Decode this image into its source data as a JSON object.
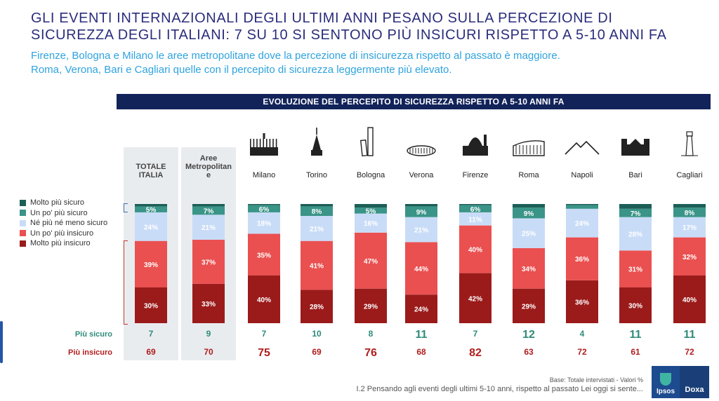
{
  "header": {
    "title_line1": "GLI EVENTI INTERNAZIONALI DEGLI ULTIMI ANNI PESANO SULLA PERCEZIONE DI",
    "title_line2": "SICUREZZA DEGLI ITALIANI: 7 SU 10 SI SENTONO PIÙ INSICURI RISPETTO A 5-10 ANNI FA",
    "subtitle_line1": "Firenze, Bologna e Milano le aree metropolitane dove la percezione di insicurezza rispetto al passato è maggiore.",
    "subtitle_line2": "Roma, Verona, Bari e Cagliari quelle con il percepito di sicurezza leggermente più elevato."
  },
  "chart_data": {
    "type": "bar",
    "stacked": true,
    "title": "EVOLUZIONE DEL PERCEPITO DI SICUREZZA RISPETTO A 5-10 ANNI FA",
    "categories": [
      "TOTALE ITALIA",
      "Aree Metropolitane",
      "Milano",
      "Torino",
      "Bologna",
      "Verona",
      "Firenze",
      "Roma",
      "Napoli",
      "Bari",
      "Cagliari"
    ],
    "category_labels": [
      "TOTALE\nITALIA",
      "Aree\nMetropolitan\ne",
      "Milano",
      "Torino",
      "Bologna",
      "Verona",
      "Firenze",
      "Roma",
      "Napoli",
      "Bari",
      "Cagliari"
    ],
    "series": [
      {
        "name": "Molto più insicuro",
        "color": "#9b1b1b",
        "values": [
          30,
          33,
          40,
          28,
          29,
          24,
          42,
          29,
          36,
          30,
          40
        ]
      },
      {
        "name": "Un po' più insicuro",
        "color": "#ea5050",
        "values": [
          39,
          37,
          35,
          41,
          47,
          44,
          40,
          34,
          36,
          31,
          32
        ]
      },
      {
        "name": "Né più né meno sicuro",
        "color": "#c9dcf7",
        "values": [
          24,
          21,
          18,
          21,
          16,
          21,
          11,
          25,
          24,
          28,
          17
        ]
      },
      {
        "name": "Un po' più sicuro",
        "color": "#3a9488",
        "values": [
          5,
          7,
          6,
          8,
          5,
          9,
          6,
          9,
          3,
          7,
          8
        ]
      },
      {
        "name": "Molto più sicuro",
        "color": "#1d5f57",
        "values": [
          2,
          2,
          1,
          2,
          3,
          2,
          1,
          3,
          1,
          4,
          3
        ]
      }
    ],
    "labeled_segments": {
      "Molto più insicuro": [
        "30%",
        "33%",
        "40%",
        "28%",
        "29%",
        "24%",
        "42%",
        "29%",
        "36%",
        "30%",
        "40%"
      ],
      "Un po' più insicuro": [
        "39%",
        "37%",
        "35%",
        "41%",
        "47%",
        "44%",
        "40%",
        "34%",
        "36%",
        "31%",
        "32%"
      ],
      "Né più né meno sicuro": [
        "24%",
        "21%",
        "18%",
        "21%",
        "16%",
        "21%",
        "11%",
        "25%",
        "24%",
        "28%",
        "17%"
      ],
      "Un po' più sicuro": [
        "5%",
        "7%",
        "6%",
        "8%",
        "5%",
        "9%",
        "6%",
        "9%",
        "",
        "7%",
        "8%"
      ]
    },
    "legend": {
      "placement": "left",
      "entries": [
        "Molto più sicuro",
        "Un po' più sicuro",
        "Né più né meno sicuro",
        "Un po' più insicuro",
        "Molto più insicuro"
      ],
      "colors": [
        "#1d5f57",
        "#3a9488",
        "#c9dcf7",
        "#ea5050",
        "#9b1b1b"
      ]
    },
    "ylim": [
      0,
      100
    ],
    "summary_rows": [
      {
        "label": "Più sicuro",
        "color": "#2e8b7a",
        "values": [
          "7",
          "9",
          "7",
          "10",
          "8",
          "11",
          "7",
          "12",
          "4",
          "11",
          "11"
        ],
        "large": [
          false,
          false,
          false,
          false,
          false,
          true,
          false,
          true,
          false,
          true,
          true
        ]
      },
      {
        "label": "Più insicuro",
        "color": "#b01e1e",
        "values": [
          "69",
          "70",
          "75",
          "69",
          "76",
          "68",
          "82",
          "63",
          "72",
          "61",
          "72"
        ],
        "large": [
          false,
          false,
          true,
          false,
          true,
          false,
          true,
          false,
          false,
          false,
          false
        ]
      }
    ],
    "city_icons": [
      "milan-cathedral-icon",
      "mole-antonelliana-icon",
      "bologna-towers-icon",
      "verona-arena-icon",
      "florence-duomo-icon",
      "colosseum-icon",
      "vesuvius-icon",
      "bari-basilica-icon",
      "cagliari-lighthouse-icon"
    ]
  },
  "footer": {
    "base": "Base: Totale intervistati - Valori %",
    "question": "I.2 Pensando agli eventi degli ultimi 5-10 anni, rispetto al passato Lei oggi si sente..."
  },
  "logo": {
    "left": "Ipsos",
    "right": "Doxa"
  }
}
